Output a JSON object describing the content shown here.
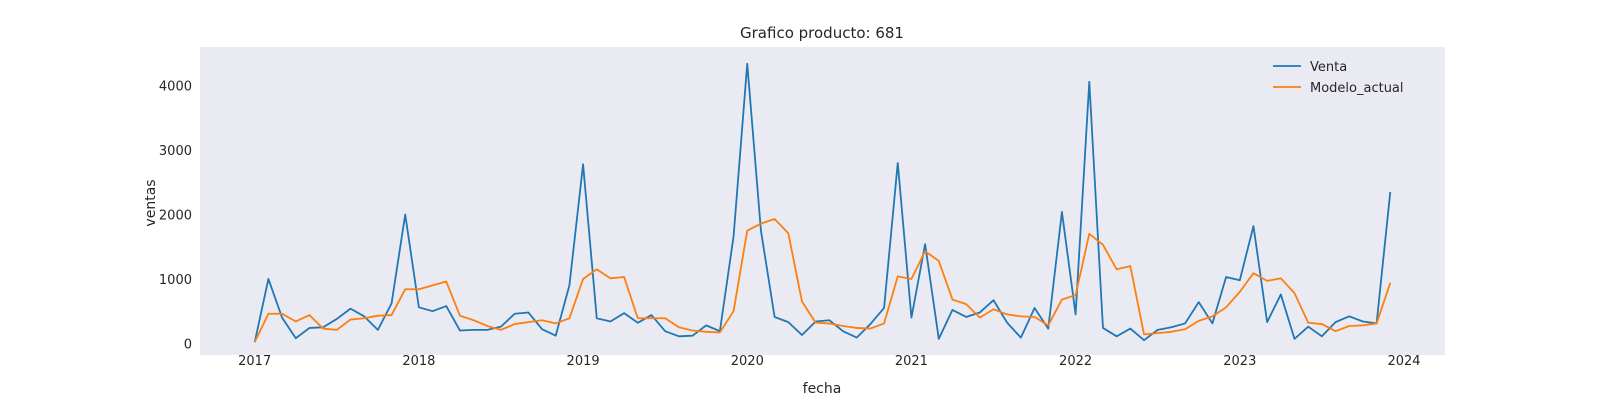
{
  "chart_data": {
    "type": "line",
    "title": "Grafico producto: 681",
    "xlabel": "fecha",
    "ylabel": "ventas",
    "x_start": "2017-01",
    "x_frequency": "monthly",
    "x_ticks": [
      "2017",
      "2018",
      "2019",
      "2020",
      "2021",
      "2022",
      "2023",
      "2024"
    ],
    "y_ticks": [
      0,
      1000,
      2000,
      3000,
      4000
    ],
    "xlim": [
      "2016-09",
      "2024-04"
    ],
    "ylim": [
      -180,
      4600
    ],
    "grid": false,
    "background": "#eaeaf2",
    "legend_position": "top-right",
    "series": [
      {
        "name": "Venta",
        "color": "#1f77b4",
        "values": [
          20,
          1000,
          400,
          80,
          240,
          250,
          380,
          540,
          420,
          210,
          620,
          2000,
          560,
          500,
          580,
          200,
          210,
          210,
          260,
          460,
          480,
          220,
          120,
          900,
          2780,
          390,
          340,
          470,
          320,
          440,
          190,
          110,
          120,
          280,
          190,
          1660,
          4340,
          1750,
          410,
          330,
          130,
          340,
          360,
          190,
          90,
          300,
          550,
          2800,
          400,
          1540,
          70,
          520,
          410,
          480,
          670,
          320,
          90,
          550,
          230,
          2040,
          450,
          4060,
          240,
          110,
          230,
          50,
          210,
          250,
          310,
          640,
          310,
          1030,
          980,
          1820,
          330,
          760,
          70,
          260,
          110,
          330,
          420,
          340,
          310,
          2350
        ]
      },
      {
        "name": "Modelo_actual",
        "color": "#ff7f0e",
        "values": [
          20,
          460,
          460,
          340,
          440,
          230,
          210,
          370,
          390,
          430,
          440,
          840,
          840,
          900,
          960,
          430,
          360,
          270,
          210,
          300,
          330,
          360,
          310,
          390,
          1000,
          1150,
          1010,
          1030,
          390,
          390,
          390,
          250,
          200,
          180,
          170,
          500,
          1750,
          1860,
          1930,
          1710,
          650,
          320,
          310,
          270,
          240,
          230,
          310,
          1040,
          1000,
          1430,
          1280,
          680,
          610,
          400,
          530,
          450,
          420,
          410,
          280,
          680,
          750,
          1700,
          1530,
          1150,
          1200,
          140,
          160,
          180,
          220,
          350,
          420,
          560,
          800,
          1090,
          970,
          1010,
          780,
          320,
          300,
          190,
          270,
          280,
          310,
          940
        ]
      }
    ]
  }
}
